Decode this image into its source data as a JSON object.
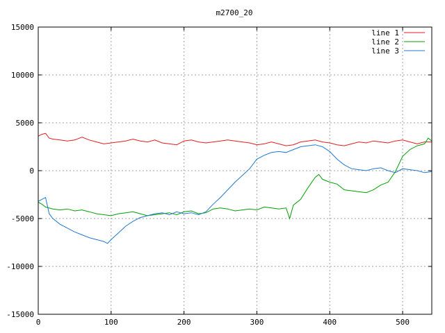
{
  "chart_data": {
    "type": "line",
    "title": "m2700_20",
    "xlabel": "",
    "ylabel": "",
    "xlim": [
      0,
      540
    ],
    "ylim": [
      -15000,
      15000
    ],
    "xticks": [
      0,
      100,
      200,
      300,
      400,
      500
    ],
    "yticks": [
      -15000,
      -10000,
      -5000,
      0,
      5000,
      10000,
      15000
    ],
    "grid": true,
    "legend_position": "top-right",
    "series": [
      {
        "name": "line 1",
        "color": "#e41a1c",
        "x": [
          0,
          5,
          10,
          15,
          20,
          30,
          40,
          50,
          60,
          70,
          80,
          90,
          100,
          110,
          120,
          130,
          140,
          150,
          160,
          170,
          180,
          190,
          200,
          210,
          220,
          230,
          240,
          250,
          260,
          270,
          280,
          290,
          300,
          310,
          320,
          330,
          340,
          350,
          360,
          370,
          380,
          390,
          400,
          410,
          420,
          430,
          440,
          450,
          460,
          470,
          480,
          490,
          500,
          510,
          520,
          530,
          540
        ],
        "y": [
          3600,
          3800,
          3900,
          3400,
          3300,
          3200,
          3100,
          3200,
          3500,
          3200,
          3000,
          2800,
          2900,
          3000,
          3100,
          3300,
          3100,
          3000,
          3200,
          2900,
          2800,
          2700,
          3100,
          3200,
          3000,
          2900,
          3000,
          3100,
          3200,
          3100,
          3000,
          2900,
          2700,
          2800,
          3000,
          2800,
          2600,
          2700,
          3000,
          3100,
          3200,
          3000,
          2900,
          2700,
          2600,
          2800,
          3000,
          2900,
          3100,
          3000,
          2900,
          3100,
          3200,
          3000,
          2800,
          3000,
          3000
        ]
      },
      {
        "name": "line 2",
        "color": "#00a000",
        "x": [
          0,
          5,
          10,
          20,
          30,
          40,
          50,
          60,
          70,
          80,
          90,
          100,
          110,
          120,
          130,
          140,
          150,
          160,
          170,
          180,
          190,
          200,
          210,
          220,
          230,
          240,
          250,
          260,
          270,
          280,
          290,
          300,
          310,
          320,
          330,
          340,
          345,
          350,
          360,
          370,
          380,
          385,
          390,
          400,
          410,
          420,
          430,
          440,
          450,
          460,
          470,
          480,
          490,
          500,
          510,
          520,
          530,
          535,
          540
        ],
        "y": [
          -3300,
          -3500,
          -3800,
          -4000,
          -4100,
          -4000,
          -4200,
          -4100,
          -4300,
          -4500,
          -4600,
          -4700,
          -4500,
          -4400,
          -4300,
          -4500,
          -4700,
          -4600,
          -4500,
          -4400,
          -4600,
          -4300,
          -4200,
          -4500,
          -4400,
          -4000,
          -3900,
          -4000,
          -4200,
          -4100,
          -4000,
          -4100,
          -3800,
          -3900,
          -4000,
          -3900,
          -5000,
          -3600,
          -3000,
          -1800,
          -700,
          -400,
          -900,
          -1200,
          -1400,
          -2000,
          -2100,
          -2200,
          -2300,
          -2000,
          -1500,
          -1200,
          -100,
          1500,
          2200,
          2600,
          2800,
          3400,
          3100
        ]
      },
      {
        "name": "line 3",
        "color": "#1f78d0",
        "x": [
          0,
          5,
          10,
          15,
          20,
          30,
          40,
          50,
          60,
          70,
          80,
          90,
          95,
          100,
          110,
          120,
          130,
          140,
          150,
          160,
          170,
          180,
          190,
          200,
          210,
          220,
          230,
          240,
          250,
          260,
          270,
          280,
          290,
          300,
          310,
          320,
          330,
          340,
          350,
          360,
          370,
          380,
          390,
          400,
          410,
          420,
          430,
          440,
          450,
          460,
          470,
          480,
          490,
          500,
          510,
          520,
          530,
          540
        ],
        "y": [
          -3200,
          -3000,
          -2800,
          -4500,
          -5000,
          -5600,
          -6000,
          -6400,
          -6700,
          -7000,
          -7200,
          -7400,
          -7600,
          -7200,
          -6500,
          -5800,
          -5300,
          -4900,
          -4700,
          -4500,
          -4400,
          -4600,
          -4300,
          -4500,
          -4400,
          -4600,
          -4300,
          -3500,
          -2800,
          -2000,
          -1200,
          -500,
          200,
          1200,
          1600,
          1900,
          2000,
          1900,
          2200,
          2500,
          2600,
          2700,
          2500,
          2000,
          1200,
          600,
          200,
          100,
          0,
          200,
          300,
          0,
          -200,
          200,
          100,
          0,
          -200,
          -100
        ]
      }
    ]
  }
}
